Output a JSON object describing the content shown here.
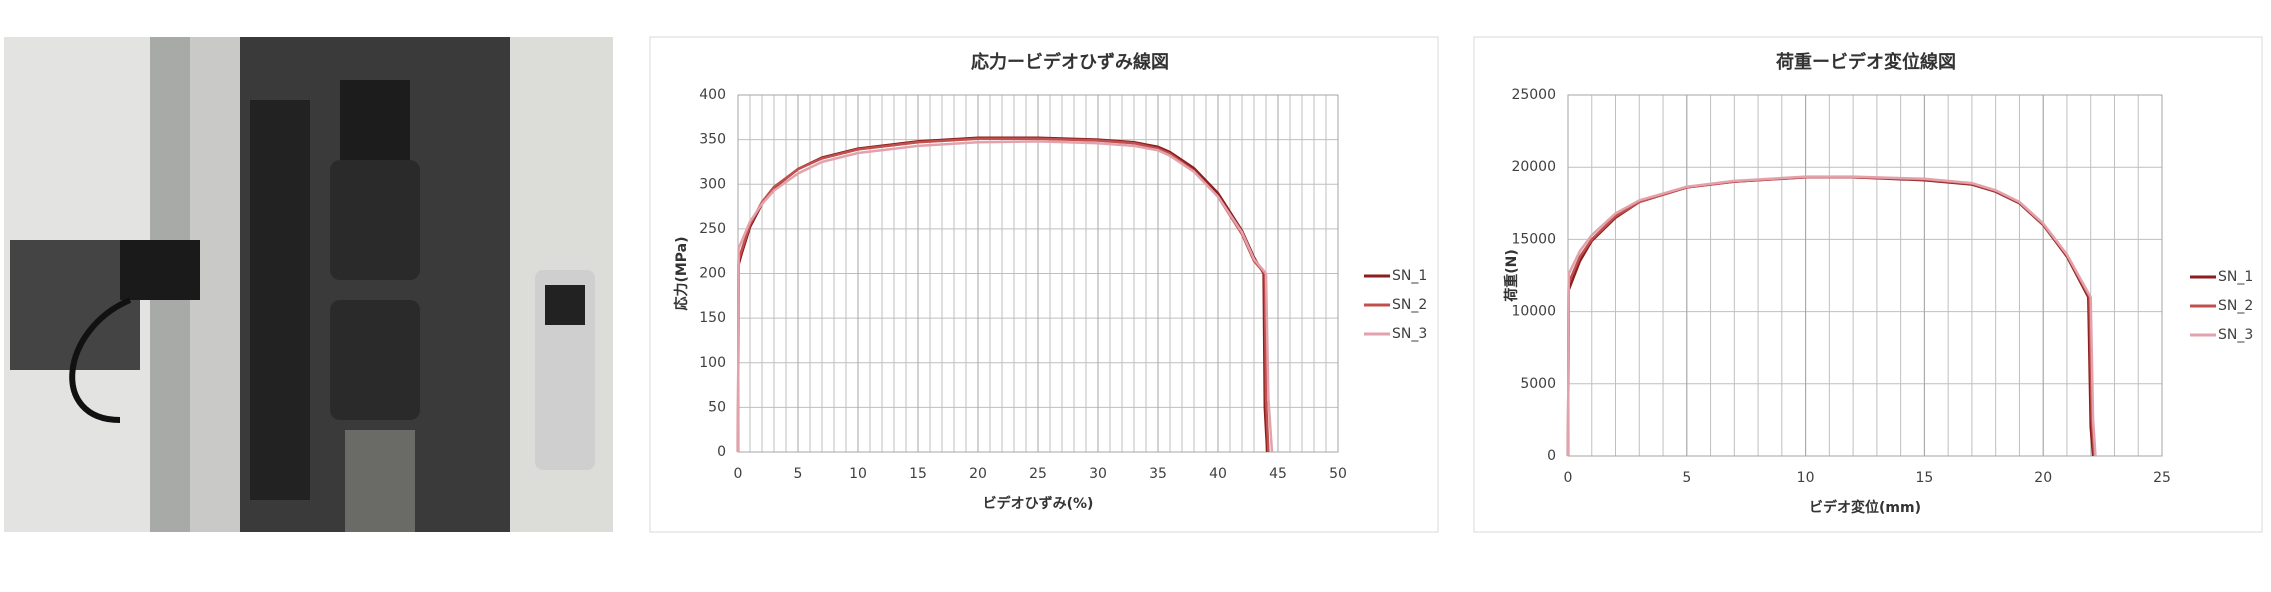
{
  "chart_data": [
    {
      "type": "line",
      "title": "応力ービデオひずみ線図",
      "x_label": "ビデオひずみ(%)",
      "y_label": "応力(MPa)",
      "xlim": [
        0,
        50
      ],
      "xticks": [
        0,
        5,
        10,
        15,
        20,
        25,
        30,
        35,
        40,
        45,
        50
      ],
      "x_minor_grid_step": 1,
      "ylim": [
        0,
        400
      ],
      "yticks": [
        0,
        50,
        100,
        150,
        200,
        250,
        300,
        350,
        400
      ],
      "grid": true,
      "legend": "right",
      "series": [
        {
          "name": "SN_1",
          "color": "#8b1e1e",
          "x": [
            0,
            0.05,
            0.3,
            1,
            2,
            3,
            5,
            7,
            10,
            15,
            20,
            25,
            30,
            33,
            35,
            36,
            38,
            40,
            42,
            43,
            43.8,
            43.9,
            44.1
          ],
          "values": [
            0,
            210,
            222,
            252,
            278,
            296,
            317,
            330,
            340,
            348,
            352,
            352,
            350,
            347,
            342,
            336,
            318,
            290,
            248,
            218,
            200,
            50,
            0
          ]
        },
        {
          "name": "SN_2",
          "color": "#c0504d",
          "x": [
            0,
            0.05,
            0.3,
            1,
            2,
            3,
            5,
            7,
            10,
            15,
            20,
            25,
            30,
            33,
            35,
            36,
            38,
            40,
            42,
            43,
            43.9,
            44.0,
            44.2
          ],
          "values": [
            0,
            215,
            226,
            255,
            280,
            297,
            317,
            329,
            339,
            347,
            351,
            351,
            349,
            346,
            340,
            334,
            315,
            286,
            244,
            214,
            200,
            60,
            0
          ]
        },
        {
          "name": "SN_3",
          "color": "#e3a2ab",
          "x": [
            0,
            0.05,
            0.3,
            1,
            2,
            3,
            5,
            7,
            10,
            15,
            20,
            25,
            30,
            33,
            35,
            36,
            38,
            40,
            42,
            43,
            44.0,
            44.2,
            44.5
          ],
          "values": [
            0,
            228,
            236,
            258,
            278,
            293,
            312,
            325,
            335,
            343,
            347,
            348,
            346,
            343,
            338,
            332,
            314,
            286,
            246,
            216,
            200,
            60,
            0
          ]
        }
      ]
    },
    {
      "type": "line",
      "title": "荷重ービデオ変位線図",
      "x_label": "ビデオ変位(mm)",
      "y_label": "荷重(N)",
      "xlim": [
        0,
        25
      ],
      "xticks": [
        0,
        5,
        10,
        15,
        20,
        25
      ],
      "x_minor_grid_step": 1,
      "ylim": [
        0,
        25000
      ],
      "yticks": [
        0,
        5000,
        10000,
        15000,
        20000,
        25000
      ],
      "grid": true,
      "legend": "right",
      "series": [
        {
          "name": "SN_1",
          "color": "#8b1e1e",
          "x": [
            0,
            0.03,
            0.5,
            1,
            2,
            3,
            5,
            7,
            10,
            12,
            15,
            17,
            18,
            19,
            20,
            21,
            21.9,
            22.0,
            22.1
          ],
          "values": [
            0,
            11500,
            13500,
            14900,
            16500,
            17600,
            18600,
            19000,
            19300,
            19300,
            19100,
            18800,
            18300,
            17500,
            16000,
            13800,
            11000,
            2000,
            0
          ]
        },
        {
          "name": "SN_2",
          "color": "#c0504d",
          "x": [
            0,
            0.03,
            0.5,
            1,
            2,
            3,
            5,
            7,
            10,
            12,
            15,
            17,
            18,
            19,
            20,
            21,
            21.95,
            22.05,
            22.15
          ],
          "values": [
            0,
            12000,
            13800,
            15000,
            16600,
            17600,
            18600,
            19000,
            19300,
            19300,
            19150,
            18850,
            18350,
            17550,
            16050,
            13900,
            11000,
            2500,
            0
          ]
        },
        {
          "name": "SN_3",
          "color": "#e3a2ab",
          "x": [
            0,
            0.03,
            0.5,
            1,
            2,
            3,
            5,
            7,
            10,
            12,
            15,
            17,
            18,
            19,
            20,
            21,
            22.0,
            22.1,
            22.2
          ],
          "values": [
            0,
            12600,
            14200,
            15300,
            16800,
            17700,
            18650,
            19050,
            19350,
            19350,
            19200,
            18900,
            18400,
            17600,
            16100,
            13950,
            11000,
            2500,
            0
          ]
        }
      ]
    }
  ]
}
